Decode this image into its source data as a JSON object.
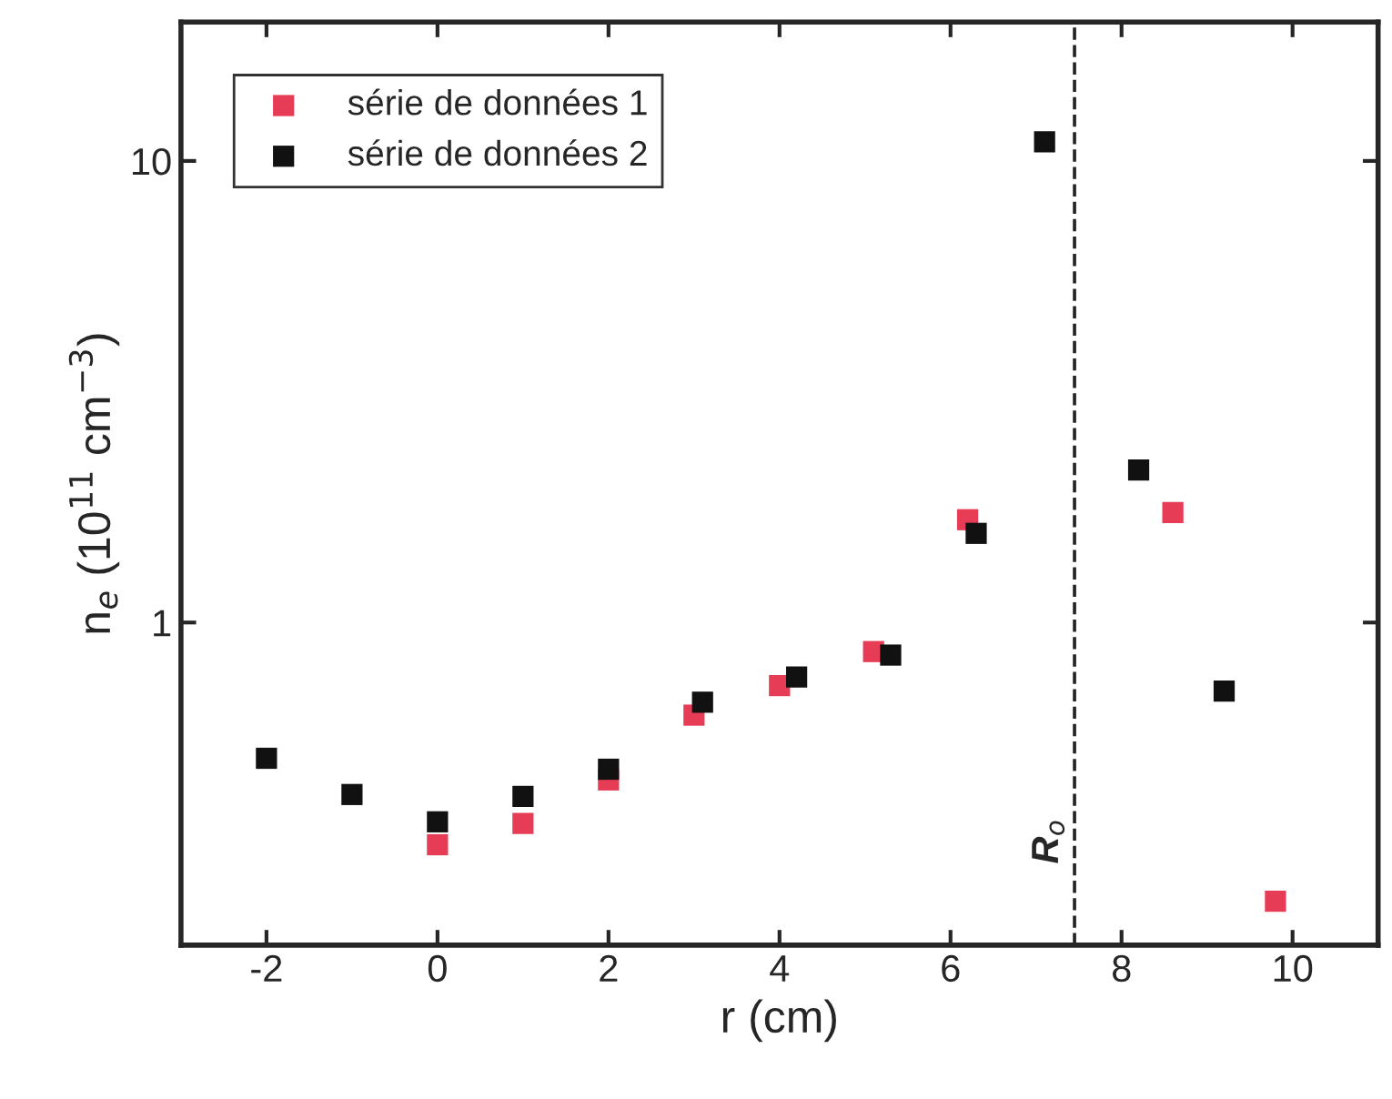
{
  "chart_data": {
    "type": "scatter",
    "xlabel": "r (cm)",
    "ylabel": "n$_{e}$ (10$^{11}$ cm$^{−3}$)",
    "log": "y",
    "xlim": [
      -3,
      11
    ],
    "xticks": [
      -2,
      0,
      2,
      4,
      6,
      8,
      10
    ],
    "ylim": [
      0.2,
      20
    ],
    "yticks": [
      1,
      10
    ],
    "marker": "square",
    "legend": "top left",
    "grid": false,
    "series": [
      {
        "name": "série de données 1",
        "color": "#e63c55",
        "x": [
          0,
          1,
          2,
          3,
          4,
          5.1,
          6.2,
          8.6,
          9.8
        ],
        "values": [
          0.33,
          0.367,
          0.456,
          0.63,
          0.73,
          0.865,
          1.67,
          1.73,
          0.249
        ]
      },
      {
        "name": "série de données 2",
        "color": "#111111",
        "x": [
          -2,
          -1,
          0,
          1,
          2,
          3.1,
          4.2,
          5.3,
          6.3,
          7.1,
          8.2,
          9.2
        ],
        "values": [
          0.508,
          0.424,
          0.37,
          0.42,
          0.481,
          0.672,
          0.762,
          0.85,
          1.56,
          11.0,
          2.14,
          0.71
        ]
      }
    ],
    "ref_lines": [
      {
        "axis": "x",
        "value": 7.45,
        "label": "R$_{o}$",
        "color": "#222222",
        "line_style": "dashed"
      }
    ]
  }
}
